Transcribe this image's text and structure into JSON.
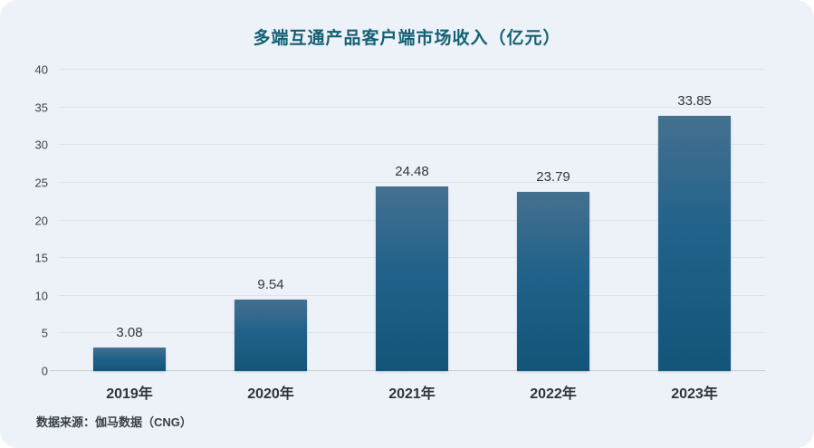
{
  "title": "多端互通产品客户端市场收入（亿元）",
  "source": "数据来源：伽马数据（CNG）",
  "colors": {
    "card_background": "#edf1f8",
    "title_text": "#136173",
    "bar_gradient_top": "#45708f",
    "bar_gradient_bottom": "#135579",
    "gridline": "#dfe3ea",
    "axis_line": "#c9ced6",
    "tick_label": "#3f4449",
    "value_label": "#33383d",
    "category_label": "#2e343b",
    "source_text": "#3a4047"
  },
  "chart_data": {
    "type": "bar",
    "title": "多端互通产品客户端市场收入（亿元）",
    "categories": [
      "2019年",
      "2020年",
      "2021年",
      "2022年",
      "2023年"
    ],
    "values": [
      3.08,
      9.54,
      24.48,
      23.79,
      33.85
    ],
    "value_labels": [
      "3.08",
      "9.54",
      "24.48",
      "23.79",
      "33.85"
    ],
    "xlabel": "",
    "ylabel": "",
    "ylim": [
      0,
      40
    ],
    "yticks": [
      0,
      5,
      10,
      15,
      20,
      25,
      30,
      35,
      40
    ],
    "grid": true,
    "legend_position": "none",
    "source": "数据来源：伽马数据（CNG）"
  }
}
